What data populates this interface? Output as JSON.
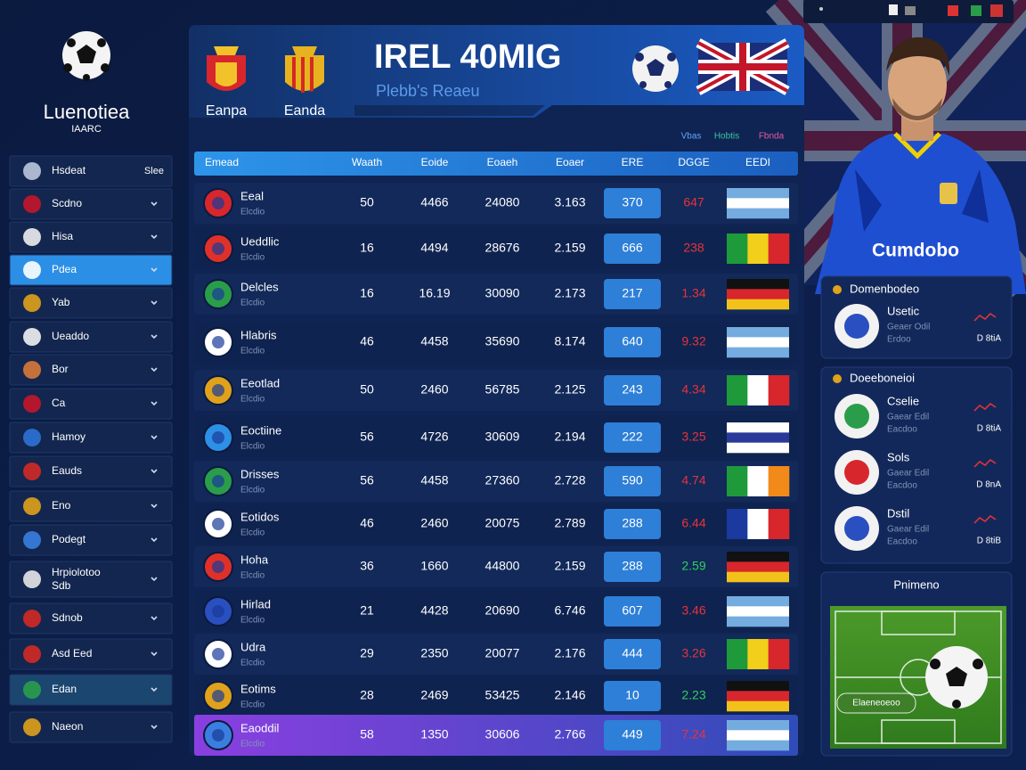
{
  "sidebar": {
    "logo_title": "Luenotiea",
    "logo_subtitle": "IAARC",
    "items": [
      {
        "label": "Hsdeat",
        "note": "Slee"
      },
      {
        "label": "Scdno"
      },
      {
        "label": "Hisa"
      },
      {
        "label": "Pdea"
      },
      {
        "label": "Yab"
      },
      {
        "label": "Ueaddo"
      },
      {
        "label": "Bor"
      },
      {
        "label": "Ca"
      },
      {
        "label": "Hamoy"
      },
      {
        "label": "Eauds"
      },
      {
        "label": "Eno"
      },
      {
        "label": "Podegt"
      },
      {
        "label": "Hrpiolotoo",
        "label2": "Sdb"
      },
      {
        "label": "Sdnob"
      },
      {
        "label": "Asd Eed"
      },
      {
        "label": "Edan"
      },
      {
        "label": "Naeon"
      }
    ]
  },
  "header": {
    "teams": [
      "Eanpa",
      "Eanda"
    ],
    "title": "IREL 40MIG",
    "subtitle": "Plebb's Reaeu"
  },
  "legend": [
    "Vbas",
    "Hobtis",
    "Fbnda"
  ],
  "table": {
    "columns": [
      "Emead",
      "Waath",
      "Eoide",
      "Eoaeh",
      "Eoaer",
      "ERE",
      "DGGE",
      "EEDI"
    ],
    "rows": [
      {
        "name": "Eeal",
        "sub": "Elcdio",
        "cells": [
          "50",
          "4466",
          "24080",
          "3.163",
          "370",
          "647"
        ]
      },
      {
        "name": "Ueddlic",
        "sub": "Elcdio",
        "cells": [
          "16",
          "4494",
          "28676",
          "2.159",
          "666",
          "238"
        ]
      },
      {
        "name": "Delcles",
        "sub": "Elcdio",
        "cells": [
          "16",
          "16.19",
          "30090",
          "2.173",
          "217",
          "1.34"
        ]
      },
      {
        "name": "Hlabris",
        "sub": "Elcdio",
        "cells": [
          "46",
          "4458",
          "35690",
          "8.174",
          "640",
          "9.32"
        ]
      },
      {
        "name": "Eeotlad",
        "sub": "Elcdio",
        "cells": [
          "50",
          "2460",
          "56785",
          "2.125",
          "243",
          "4.34"
        ]
      },
      {
        "name": "Eoctiine",
        "sub": "Elcdio",
        "cells": [
          "56",
          "4726",
          "30609",
          "2.194",
          "222",
          "3.25"
        ]
      },
      {
        "name": "Drisses",
        "sub": "Elcdio",
        "cells": [
          "56",
          "4458",
          "27360",
          "2.728",
          "590",
          "4.74"
        ]
      },
      {
        "name": "Eotidos",
        "sub": "Elcdio",
        "cells": [
          "46",
          "2460",
          "20075",
          "2.789",
          "288",
          "6.44"
        ]
      },
      {
        "name": "Hoha",
        "sub": "Elcdio",
        "cells": [
          "36",
          "1660",
          "44800",
          "2.159",
          "288",
          "2.59"
        ]
      },
      {
        "name": "Hirlad",
        "sub": "Elcdio",
        "cells": [
          "21",
          "4428",
          "20690",
          "6.746",
          "607",
          "3.46"
        ]
      },
      {
        "name": "Udra",
        "sub": "Elcdio",
        "cells": [
          "29",
          "2350",
          "20077",
          "2.176",
          "444",
          "3.26"
        ]
      },
      {
        "name": "Eotims",
        "sub": "Elcdio",
        "cells": [
          "28",
          "2469",
          "53425",
          "2.146",
          "10",
          "2.23"
        ]
      },
      {
        "name": "Eaoddil",
        "sub": "Elcdio",
        "cells": [
          "58",
          "1350",
          "30606",
          "2.766",
          "449",
          "7.24"
        ]
      }
    ]
  },
  "player": {
    "jersey_text": "Cumdobo"
  },
  "cards": [
    {
      "title": "Domenbodeo",
      "items": [
        {
          "name": "Usetic",
          "line1": "Geaer Odil",
          "line2": "Erdoo",
          "badge": "D 8tiA"
        }
      ]
    },
    {
      "title": "Doeeboneioi",
      "items": [
        {
          "name": "Cselie",
          "line1": "Gaear Edil",
          "line2": "Eacdoo",
          "badge": "D 8tiA"
        },
        {
          "name": "Sols",
          "line1": "Gaear Edil",
          "line2": "Eacdoo",
          "badge": "D 8nA"
        },
        {
          "name": "Dstil",
          "line1": "Gaear Edil",
          "line2": "Eacdoo",
          "badge": "D 8tiB"
        }
      ]
    },
    {
      "title": "Pnimeno",
      "field_label": "Elaeneoeoo"
    }
  ]
}
